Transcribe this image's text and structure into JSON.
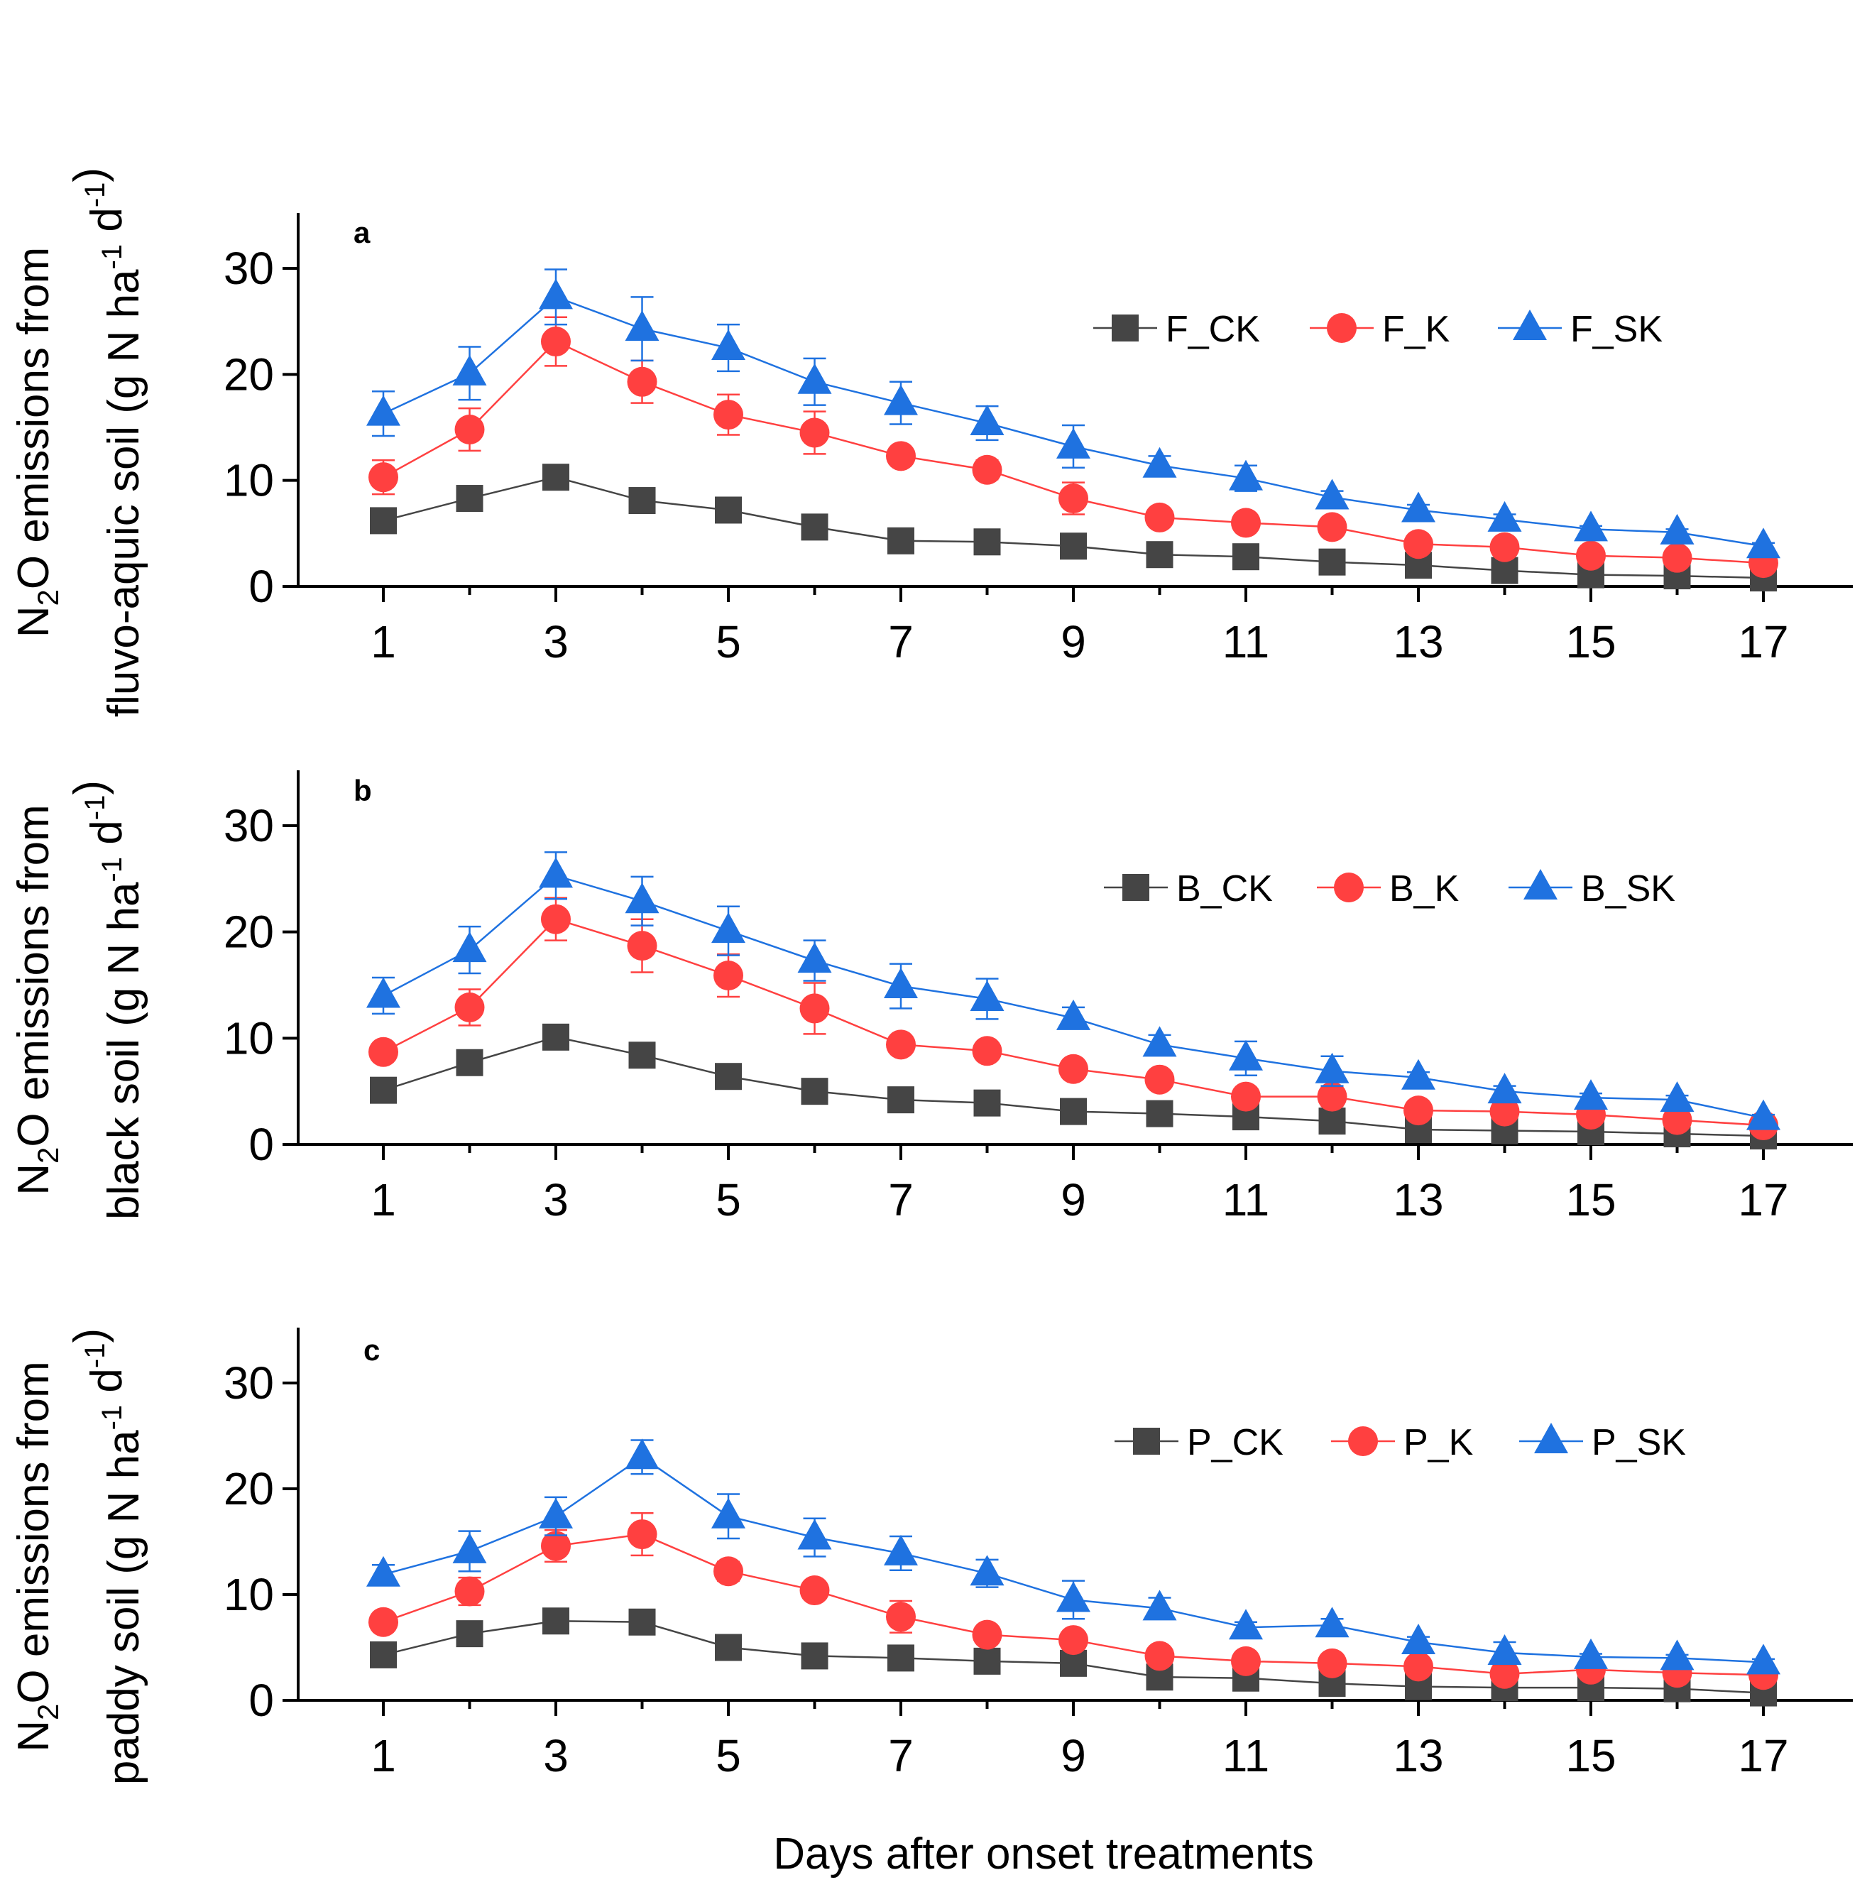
{
  "colors": {
    "ck": "#454545",
    "k": "#ff4040",
    "sk": "#1f72e0",
    "axis": "#000000"
  },
  "chart_data": [
    {
      "type": "line",
      "panel_label": "a",
      "ylabel_lines": [
        "N2O emissions from",
        "fluvo-aquic soil (g N ha-1 d-1)"
      ],
      "xlabel": "",
      "ylim": [
        0,
        35
      ],
      "xlim": [
        0,
        18
      ],
      "yticks": [
        0,
        10,
        20,
        30
      ],
      "xticks": [
        1,
        3,
        5,
        7,
        9,
        11,
        13,
        15,
        17
      ],
      "x": [
        1,
        2,
        3,
        4,
        5,
        6,
        7,
        8,
        9,
        10,
        11,
        12,
        13,
        14,
        15,
        16,
        17
      ],
      "series": [
        {
          "name": "F_CK",
          "marker": "square",
          "color_key": "ck",
          "values": [
            6.2,
            8.3,
            10.3,
            8.1,
            7.2,
            5.6,
            4.3,
            4.2,
            3.8,
            3.0,
            2.8,
            2.3,
            2.0,
            1.5,
            1.1,
            1.0,
            0.8
          ],
          "errors": [
            0.4,
            0.5,
            0.6,
            0.5,
            0.4,
            0.4,
            0.3,
            0.3,
            0.3,
            0.2,
            0.2,
            0.2,
            0.2,
            0.1,
            0.1,
            0.1,
            0.1
          ]
        },
        {
          "name": "F_K",
          "marker": "circle",
          "color_key": "k",
          "values": [
            10.3,
            14.8,
            23.1,
            19.3,
            16.2,
            14.5,
            12.3,
            11.0,
            8.3,
            6.5,
            6.0,
            5.6,
            4.0,
            3.7,
            2.9,
            2.7,
            2.2
          ],
          "errors": [
            1.6,
            2.0,
            2.3,
            2.0,
            1.9,
            2.0,
            0.8,
            0.9,
            1.5,
            0.4,
            0.4,
            0.4,
            0.5,
            0.4,
            0.3,
            0.3,
            0.3
          ]
        },
        {
          "name": "F_SK",
          "marker": "triangle",
          "color_key": "sk",
          "values": [
            16.3,
            20.1,
            27.3,
            24.3,
            22.5,
            19.3,
            17.3,
            15.4,
            13.2,
            11.4,
            10.2,
            8.4,
            7.2,
            6.3,
            5.4,
            5.1,
            3.8
          ],
          "errors": [
            2.1,
            2.5,
            2.6,
            3.0,
            2.2,
            2.2,
            2.0,
            1.6,
            2.0,
            0.9,
            1.2,
            0.6,
            0.5,
            0.5,
            0.3,
            0.3,
            0.3
          ]
        }
      ]
    },
    {
      "type": "line",
      "panel_label": "b",
      "ylabel_lines": [
        "N2O emissions from",
        "black soil (g N ha-1 d-1)"
      ],
      "xlabel": "",
      "ylim": [
        0,
        35
      ],
      "xlim": [
        0,
        18
      ],
      "yticks": [
        0,
        10,
        20,
        30
      ],
      "xticks": [
        1,
        3,
        5,
        7,
        9,
        11,
        13,
        15,
        17
      ],
      "x": [
        1,
        2,
        3,
        4,
        5,
        6,
        7,
        8,
        9,
        10,
        11,
        12,
        13,
        14,
        15,
        16,
        17
      ],
      "series": [
        {
          "name": "B_CK",
          "marker": "square",
          "color_key": "ck",
          "values": [
            5.1,
            7.7,
            10.1,
            8.4,
            6.4,
            5.0,
            4.2,
            3.9,
            3.1,
            2.9,
            2.6,
            2.2,
            1.4,
            1.3,
            1.2,
            1.0,
            0.8
          ],
          "errors": [
            0.4,
            0.5,
            0.5,
            0.5,
            0.4,
            0.4,
            0.3,
            0.3,
            0.3,
            0.2,
            0.2,
            0.2,
            0.1,
            0.1,
            0.1,
            0.1,
            0.1
          ]
        },
        {
          "name": "B_K",
          "marker": "circle",
          "color_key": "k",
          "values": [
            8.7,
            12.9,
            21.2,
            18.7,
            15.9,
            12.8,
            9.4,
            8.8,
            7.1,
            6.1,
            4.5,
            4.5,
            3.2,
            3.1,
            2.8,
            2.3,
            1.8
          ],
          "errors": [
            0.8,
            1.7,
            2.0,
            2.5,
            2.0,
            2.4,
            0.8,
            0.8,
            0.5,
            0.5,
            0.8,
            0.9,
            0.4,
            0.4,
            0.3,
            0.3,
            0.3
          ]
        },
        {
          "name": "B_SK",
          "marker": "triangle",
          "color_key": "sk",
          "values": [
            14.0,
            18.3,
            25.3,
            22.9,
            20.1,
            17.3,
            14.9,
            13.7,
            11.9,
            9.4,
            8.1,
            6.9,
            6.3,
            5.0,
            4.4,
            4.2,
            2.5
          ],
          "errors": [
            1.7,
            2.2,
            2.2,
            2.3,
            2.3,
            1.9,
            2.1,
            1.9,
            1.0,
            0.9,
            1.6,
            1.4,
            0.5,
            0.5,
            0.4,
            0.4,
            0.3
          ]
        }
      ]
    },
    {
      "type": "line",
      "panel_label": "c",
      "ylabel_lines": [
        "N2O emissions from",
        "paddy soil (g N ha-1 d-1)"
      ],
      "xlabel": "Days after onset treatments",
      "ylim": [
        0,
        35
      ],
      "xlim": [
        0,
        18
      ],
      "yticks": [
        0,
        10,
        20,
        30
      ],
      "xticks": [
        1,
        3,
        5,
        7,
        9,
        11,
        13,
        15,
        17
      ],
      "x": [
        1,
        2,
        3,
        4,
        5,
        6,
        7,
        8,
        9,
        10,
        11,
        12,
        13,
        14,
        15,
        16,
        17
      ],
      "series": [
        {
          "name": "P_CK",
          "marker": "square",
          "color_key": "ck",
          "values": [
            4.3,
            6.3,
            7.5,
            7.4,
            5.0,
            4.2,
            4.0,
            3.7,
            3.5,
            2.2,
            2.1,
            1.6,
            1.3,
            1.2,
            1.2,
            1.1,
            0.7
          ],
          "errors": [
            0.4,
            0.4,
            0.5,
            0.5,
            0.4,
            0.3,
            0.3,
            0.3,
            0.3,
            0.2,
            0.2,
            0.2,
            0.1,
            0.1,
            0.1,
            0.1,
            0.1
          ]
        },
        {
          "name": "P_K",
          "marker": "circle",
          "color_key": "k",
          "values": [
            7.4,
            10.3,
            14.6,
            15.7,
            12.2,
            10.4,
            7.9,
            6.2,
            5.7,
            4.2,
            3.7,
            3.5,
            3.2,
            2.5,
            2.9,
            2.6,
            2.4
          ],
          "errors": [
            0.6,
            1.3,
            1.5,
            2.0,
            0.9,
            0.8,
            1.5,
            0.5,
            0.5,
            0.5,
            0.4,
            0.4,
            0.4,
            0.4,
            0.5,
            0.3,
            0.3
          ]
        },
        {
          "name": "P_SK",
          "marker": "triangle",
          "color_key": "sk",
          "values": [
            11.9,
            14.1,
            17.4,
            23.0,
            17.4,
            15.4,
            13.9,
            12.0,
            9.5,
            8.7,
            6.9,
            7.1,
            5.5,
            4.5,
            4.1,
            4.0,
            3.6
          ],
          "errors": [
            0.9,
            1.9,
            1.8,
            1.6,
            2.1,
            1.8,
            1.6,
            1.3,
            1.8,
            1.0,
            0.5,
            0.6,
            0.5,
            1.0,
            0.3,
            0.3,
            0.3
          ]
        }
      ]
    }
  ]
}
